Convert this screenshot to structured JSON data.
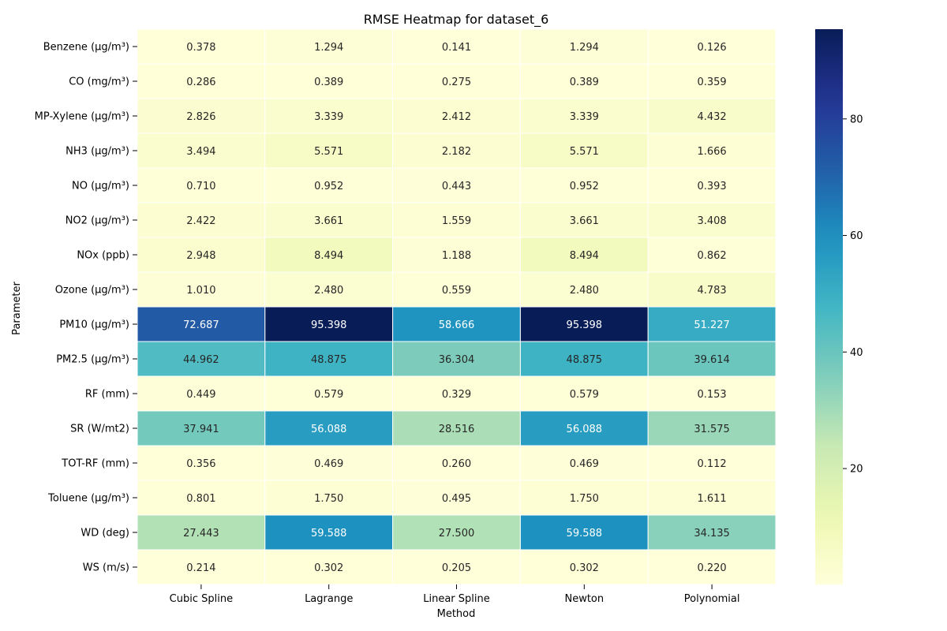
{
  "chart_data": {
    "type": "heatmap",
    "title": "RMSE Heatmap for dataset_6",
    "xlabel": "Method",
    "ylabel": "Parameter",
    "columns": [
      "Cubic Spline",
      "Lagrange",
      "Linear Spline",
      "Newton",
      "Polynomial"
    ],
    "rows": [
      "Benzene (µg/m³)",
      "CO (mg/m³)",
      "MP-Xylene (µg/m³)",
      "NH3 (µg/m³)",
      "NO (µg/m³)",
      "NO2 (µg/m³)",
      "NOx (ppb)",
      "Ozone (µg/m³)",
      "PM10 (µg/m³)",
      "PM2.5 (µg/m³)",
      "RF (mm)",
      "SR (W/mt2)",
      "TOT-RF (mm)",
      "Toluene (µg/m³)",
      "WD (deg)",
      "WS (m/s)"
    ],
    "values": [
      [
        0.378,
        1.294,
        0.141,
        1.294,
        0.126
      ],
      [
        0.286,
        0.389,
        0.275,
        0.389,
        0.359
      ],
      [
        2.826,
        3.339,
        2.412,
        3.339,
        4.432
      ],
      [
        3.494,
        5.571,
        2.182,
        5.571,
        1.666
      ],
      [
        0.71,
        0.952,
        0.443,
        0.952,
        0.393
      ],
      [
        2.422,
        3.661,
        1.559,
        3.661,
        3.408
      ],
      [
        2.948,
        8.494,
        1.188,
        8.494,
        0.862
      ],
      [
        1.01,
        2.48,
        0.559,
        2.48,
        4.783
      ],
      [
        72.687,
        95.398,
        58.666,
        95.398,
        51.227
      ],
      [
        44.962,
        48.875,
        36.304,
        48.875,
        39.614
      ],
      [
        0.449,
        0.579,
        0.329,
        0.579,
        0.153
      ],
      [
        37.941,
        56.088,
        28.516,
        56.088,
        31.575
      ],
      [
        0.356,
        0.469,
        0.26,
        0.469,
        0.112
      ],
      [
        0.801,
        1.75,
        0.495,
        1.75,
        1.611
      ],
      [
        27.443,
        59.588,
        27.5,
        59.588,
        34.135
      ],
      [
        0.214,
        0.302,
        0.205,
        0.302,
        0.22
      ]
    ],
    "colormap": "YlGnBu",
    "vmin": 0.112,
    "vmax": 95.398,
    "colorbar_ticks": [
      20,
      40,
      60,
      80
    ],
    "grid": false,
    "legend": "colorbar-right"
  }
}
